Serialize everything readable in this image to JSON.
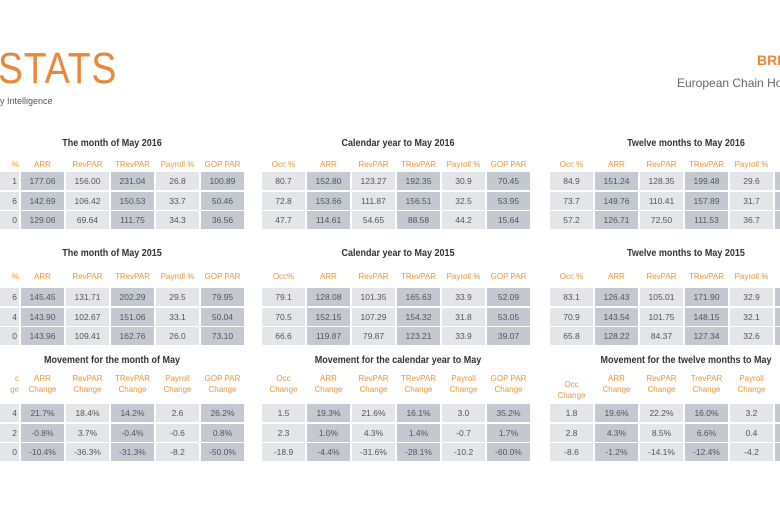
{
  "header": {
    "logo": "STATS",
    "tagline": "y Intelligence",
    "brand": "BRI",
    "subtitle": "European Chain Hote"
  },
  "colors": {
    "accent": "#e8893a",
    "cell_light": "#e3e5e9",
    "cell_dark": "#c4c9d1"
  },
  "groups": [
    {
      "tables": [
        {
          "title": "The month of May 2016",
          "headers": [
            "%",
            "ARR",
            "RevPAR",
            "TRevPAR",
            "Payroll %",
            "GOP PAR"
          ],
          "rows": [
            [
              "1",
              "177.06",
              "156.00",
              "231.04",
              "26.8",
              "100.89"
            ],
            [
              "6",
              "142.69",
              "106.42",
              "150.53",
              "33.7",
              "50.46"
            ],
            [
              "0",
              "129.06",
              "69.64",
              "111.75",
              "34.3",
              "36.56"
            ]
          ]
        },
        {
          "title": "The month of May 2015",
          "headers": [
            "%",
            "ARR",
            "RevPAR",
            "TRevPAR",
            "Payroll %",
            "GOP PAR"
          ],
          "rows": [
            [
              "6",
              "145.45",
              "131.71",
              "202.29",
              "29.5",
              "79.95"
            ],
            [
              "4",
              "143.90",
              "102.67",
              "151.06",
              "33.1",
              "50.04"
            ],
            [
              "0",
              "143.96",
              "109.41",
              "162.76",
              "26.0",
              "73.10"
            ]
          ]
        },
        {
          "title": "Movement for the month of May",
          "headers": [
            "c\nge",
            "ARR\nChange",
            "RevPAR\nChange",
            "TRevPAR\nChange",
            "Payroll\nChange",
            "GOP PAR\nChange"
          ],
          "rows": [
            [
              "4",
              "21.7%",
              "18.4%",
              "14.2%",
              "2.6",
              "26.2%"
            ],
            [
              "2",
              "-0.8%",
              "3.7%",
              "-0.4%",
              "-0.6",
              "0.8%"
            ],
            [
              "0",
              "-10.4%",
              "-36.3%",
              "-31.3%",
              "-8.2",
              "-50.0%"
            ]
          ]
        }
      ]
    },
    {
      "tables": [
        {
          "title": "Calendar year to May 2016",
          "headers": [
            "Occ %",
            "ARR",
            "RevPAR",
            "TRevPAR",
            "Payroll %",
            "GOP PAR"
          ],
          "rows": [
            [
              "80.7",
              "152.80",
              "123.27",
              "192.35",
              "30.9",
              "70.45"
            ],
            [
              "72.8",
              "153.66",
              "111.87",
              "156.51",
              "32.5",
              "53.95"
            ],
            [
              "47.7",
              "114.61",
              "54.65",
              "88.58",
              "44.2",
              "15.64"
            ]
          ]
        },
        {
          "title": "Calendar year to May 2015",
          "headers": [
            "Occ%",
            "ARR",
            "RevPAR",
            "TRevPAR",
            "Payroll %",
            "GOP PAR"
          ],
          "rows": [
            [
              "79.1",
              "128.08",
              "101.35",
              "165.63",
              "33.9",
              "52.09"
            ],
            [
              "70.5",
              "152.15",
              "107.29",
              "154.32",
              "31.8",
              "53.05"
            ],
            [
              "66.6",
              "119.87",
              "79.87",
              "123.21",
              "33.9",
              "39.07"
            ]
          ]
        },
        {
          "title": "Movement for the calendar year to May",
          "headers": [
            "Occ\nChange",
            "ARR\nChange",
            "RevPAR\nChange",
            "TRevPAR\nChange",
            "Payroll\nChange",
            "GOP PAR\nChange"
          ],
          "rows": [
            [
              "1.5",
              "19.3%",
              "21.6%",
              "16.1%",
              "3.0",
              "35.2%"
            ],
            [
              "2.3",
              "1.0%",
              "4.3%",
              "1.4%",
              "-0.7",
              "1.7%"
            ],
            [
              "-18.9",
              "-4.4%",
              "-31.6%",
              "-28.1%",
              "-10.2",
              "-60.0%"
            ]
          ]
        }
      ]
    },
    {
      "tables": [
        {
          "title": "Twelve months to May 2016",
          "headers": [
            "Occ %",
            "ARR",
            "RevPAR",
            "TRevPAR",
            "Payroll %",
            ""
          ],
          "rows": [
            [
              "84.9",
              "151.24",
              "128.35",
              "199.48",
              "29.6",
              ""
            ],
            [
              "73.7",
              "149.76",
              "110.41",
              "157.89",
              "31.7",
              ""
            ],
            [
              "57.2",
              "126.71",
              "72.50",
              "111.53",
              "36.7",
              ""
            ]
          ]
        },
        {
          "title": "Twelve months to May 2015",
          "headers": [
            "Occ %",
            "ARR",
            "RevPAR",
            "TRevPAR",
            "Payroll %",
            ""
          ],
          "rows": [
            [
              "83.1",
              "126.43",
              "105.01",
              "171.90",
              "32.9",
              ""
            ],
            [
              "70.9",
              "143.54",
              "101.75",
              "148.15",
              "32.1",
              ""
            ],
            [
              "65.8",
              "128.22",
              "84.37",
              "127.34",
              "32.6",
              ""
            ]
          ]
        },
        {
          "title": "Movement for the twelve months to May",
          "headers": [
            "Occ Change",
            "ARR\nChange",
            "RevPAR\nChange",
            "TrevPAR\nChange",
            "Payroll\nChange",
            ""
          ],
          "rows": [
            [
              "1.8",
              "19.6%",
              "22.2%",
              "16.0%",
              "3.2",
              ""
            ],
            [
              "2.8",
              "4.3%",
              "8.5%",
              "6.6%",
              "0.4",
              ""
            ],
            [
              "-8.6",
              "-1.2%",
              "-14.1%",
              "-12.4%",
              "-4.2",
              ""
            ]
          ]
        }
      ]
    }
  ]
}
